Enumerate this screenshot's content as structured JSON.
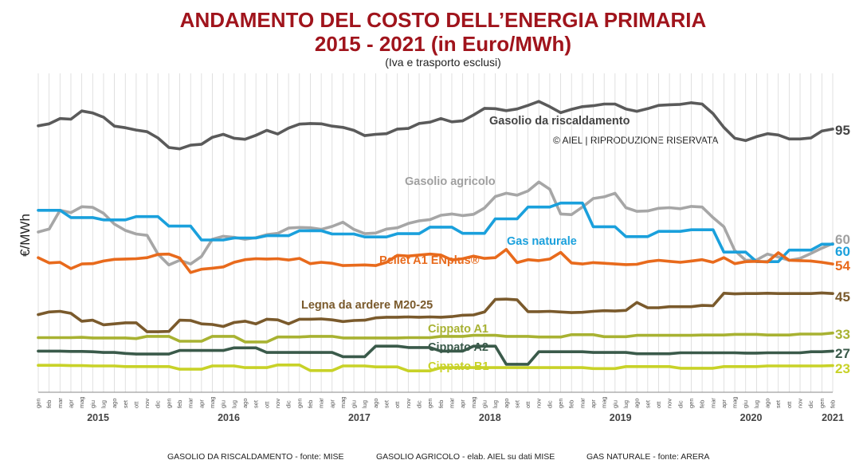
{
  "chart_data": {
    "type": "line",
    "title_line1": "ANDAMENTO DEL COSTO DELL’ENERGIA PRIMARIA",
    "title_line2": "2015 - 2021 (in Euro/MWh)",
    "subtitle": "(Iva e trasporto esclusi)",
    "ylabel": "€/MWh",
    "copyright": "© AIEL | RIPRODUZIONE RISERVATA",
    "grid": true,
    "months": [
      "gen",
      "feb",
      "mar",
      "apr",
      "mag",
      "giu",
      "lug",
      "ago",
      "set",
      "ott",
      "nov",
      "dic"
    ],
    "years": [
      "2015",
      "2016",
      "2017",
      "2018",
      "2019",
      "2020",
      "2021"
    ],
    "x_start": "2015-01",
    "sources": [
      "GASOLIO DA RISCALDAMENTO - fonte: MISE",
      "GASOLIO AGRICOLO - elab. AIEL su dati MISE",
      "GAS NATURALE - fonte: ARERA"
    ],
    "series": [
      {
        "name": "Gasolio da riscaldamento",
        "color": "#5a5a5a",
        "end_label": "95",
        "values": [
          96,
          96.6,
          98.2,
          98.0,
          100.5,
          99.9,
          98.6,
          95.9,
          95.4,
          94.7,
          94.2,
          92.3,
          89.4,
          89.0,
          90.1,
          90.4,
          92.5,
          93.4,
          92.2,
          91.9,
          93.1,
          94.6,
          93.5,
          95.3,
          96.5,
          96.7,
          96.6,
          95.9,
          95.5,
          94.6,
          93.0,
          93.4,
          93.6,
          95.0,
          95.2,
          96.7,
          97.1,
          98.2,
          97.2,
          97.5,
          99.3,
          101.3,
          101.2,
          100.6,
          101.1,
          102.2,
          103.4,
          101.8,
          100.0,
          101.0,
          101.8,
          102.1,
          102.6,
          102.6,
          101.1,
          100.4,
          101.2,
          102.2,
          102.4,
          102.5,
          103.0,
          102.6,
          99.7,
          95.5,
          92.2,
          91.5,
          92.7,
          93.6,
          93.2,
          92.0,
          92.0,
          92.3,
          94.4,
          95.0
        ]
      },
      {
        "name": "Gasolio agricolo",
        "color": "#a6a6a6",
        "end_label": "60",
        "values": [
          63.7,
          64.6,
          70.3,
          69.6,
          71.4,
          71.2,
          69.4,
          66.1,
          64.2,
          63.1,
          62.7,
          57.0,
          53.7,
          55.1,
          54.0,
          56.3,
          61.5,
          62.4,
          62.1,
          61.5,
          62.0,
          62.9,
          63.3,
          64.9,
          65.1,
          65.0,
          64.5,
          65.4,
          66.7,
          64.5,
          63.2,
          63.4,
          64.6,
          65.0,
          66.3,
          67.1,
          67.5,
          68.8,
          69.2,
          68.7,
          69.1,
          71.0,
          74.5,
          75.5,
          74.9,
          76.2,
          78.9,
          76.7,
          69.2,
          69.0,
          71.3,
          73.9,
          74.4,
          75.5,
          71.1,
          70.0,
          70.1,
          70.9,
          71.1,
          70.8,
          71.5,
          71.3,
          68.1,
          65.3,
          58.1,
          55.1,
          55.2,
          57.0,
          56.1,
          55.1,
          55.7,
          57.2,
          58.8,
          60.2
        ]
      },
      {
        "name": "Gas naturale",
        "color": "#1aa0dc",
        "end_label": "60",
        "values": [
          70.3,
          70.3,
          70.3,
          68.1,
          68.1,
          68.1,
          67.4,
          67.4,
          67.4,
          68.4,
          68.4,
          68.4,
          65.5,
          65.5,
          65.5,
          61.3,
          61.3,
          61.3,
          61.9,
          61.9,
          61.9,
          62.6,
          62.6,
          62.6,
          64.1,
          64.1,
          64.1,
          63.1,
          63.1,
          63.1,
          62.2,
          62.2,
          62.2,
          63.2,
          63.2,
          63.2,
          65.2,
          65.2,
          65.2,
          63.3,
          63.3,
          63.3,
          67.7,
          67.7,
          67.7,
          71.3,
          71.3,
          71.3,
          72.5,
          72.5,
          72.5,
          65.3,
          65.3,
          65.3,
          62.3,
          62.3,
          62.3,
          63.9,
          63.9,
          63.9,
          64.4,
          64.4,
          64.4,
          57.6,
          57.6,
          57.6,
          54.7,
          54.7,
          54.7,
          58.2,
          58.2,
          58.2,
          60.0,
          60.0
        ]
      },
      {
        "name": "Pellet A1 ENplus®",
        "color": "#e86a1c",
        "end_label": "54",
        "values": [
          55.9,
          54.3,
          54.5,
          52.6,
          54.0,
          54.1,
          54.9,
          55.4,
          55.5,
          55.6,
          55.9,
          56.9,
          57.0,
          55.8,
          51.4,
          52.4,
          52.7,
          53.1,
          54.5,
          55.3,
          55.6,
          55.5,
          55.6,
          55.2,
          55.7,
          54.1,
          54.5,
          54.2,
          53.5,
          53.6,
          53.7,
          53.5,
          54.5,
          56.6,
          56.4,
          56.7,
          57.0,
          56.7,
          55.2,
          55.6,
          56.4,
          55.7,
          55.9,
          58.4,
          54.4,
          55.3,
          55.0,
          55.5,
          57.5,
          54.3,
          54.0,
          54.4,
          54.2,
          54.0,
          53.8,
          53.9,
          54.7,
          55.1,
          54.8,
          54.5,
          54.9,
          55.3,
          54.5,
          55.9,
          54.1,
          54.7,
          54.8,
          54.6,
          57.4,
          55.1,
          55.0,
          54.9,
          54.5,
          54.0
        ]
      },
      {
        "name": "Legna da ardere M20-25",
        "color": "#7a5a2c",
        "end_label": "45",
        "values": [
          38.6,
          39.4,
          39.6,
          39.0,
          36.6,
          36.9,
          35.5,
          35.8,
          36.1,
          36.1,
          33.4,
          33.4,
          33.5,
          36.9,
          36.8,
          35.8,
          35.6,
          35.0,
          36.2,
          36.6,
          35.8,
          37.2,
          37.0,
          35.8,
          37.2,
          37.2,
          37.3,
          37.0,
          36.5,
          36.8,
          36.9,
          37.6,
          37.8,
          37.8,
          37.9,
          37.8,
          37.9,
          37.8,
          38.0,
          38.4,
          38.5,
          39.4,
          43.2,
          43.3,
          43.1,
          39.5,
          39.5,
          39.6,
          39.4,
          39.2,
          39.3,
          39.6,
          39.8,
          39.7,
          39.9,
          42.3,
          40.7,
          40.7,
          41.0,
          41.0,
          41.0,
          41.4,
          41.3,
          45.1,
          44.9,
          45.0,
          45.0,
          45.1,
          45.0,
          45.0,
          45.0,
          45.0,
          45.2,
          45.0
        ]
      },
      {
        "name": "Cippato A1",
        "color": "#a8b232",
        "end_label": "33",
        "values": [
          31.6,
          31.6,
          31.6,
          31.6,
          31.7,
          31.5,
          31.5,
          31.5,
          31.5,
          31.3,
          32.0,
          32.0,
          32.0,
          30.5,
          30.5,
          30.5,
          32.0,
          32.0,
          32.0,
          30.3,
          30.3,
          30.3,
          31.8,
          31.8,
          31.8,
          32.0,
          32.0,
          32.0,
          31.5,
          31.5,
          31.5,
          31.5,
          31.5,
          31.5,
          31.6,
          31.6,
          31.6,
          32.0,
          32.0,
          32.0,
          32.3,
          32.3,
          32.3,
          32.0,
          32.0,
          32.0,
          31.8,
          31.8,
          31.8,
          32.5,
          32.5,
          32.5,
          31.9,
          31.9,
          31.9,
          32.3,
          32.3,
          32.3,
          32.3,
          32.3,
          32.3,
          32.4,
          32.4,
          32.4,
          32.6,
          32.6,
          32.6,
          32.4,
          32.4,
          32.4,
          32.7,
          32.7,
          32.7,
          33.0
        ]
      },
      {
        "name": "Cippato A2",
        "color": "#3a5a4a",
        "end_label": "27",
        "values": [
          27.5,
          27.5,
          27.5,
          27.4,
          27.4,
          27.3,
          27.1,
          27.1,
          26.8,
          26.6,
          26.6,
          26.6,
          26.6,
          27.7,
          27.7,
          27.7,
          27.7,
          27.7,
          28.5,
          28.5,
          28.5,
          27.1,
          27.1,
          27.1,
          27.1,
          27.1,
          27.1,
          27.1,
          25.8,
          25.8,
          25.8,
          29.0,
          29.0,
          29.0,
          28.6,
          28.6,
          28.6,
          27.5,
          27.5,
          27.5,
          29.0,
          29.0,
          29.0,
          23.5,
          23.5,
          23.5,
          27.3,
          27.3,
          27.3,
          27.3,
          27.3,
          27.1,
          27.1,
          27.1,
          27.1,
          26.7,
          26.7,
          26.7,
          26.7,
          27.0,
          27.0,
          27.0,
          27.0,
          27.0,
          27.0,
          26.9,
          26.9,
          27.0,
          27.0,
          27.0,
          27.0,
          27.3,
          27.3,
          27.5
        ]
      },
      {
        "name": "Cippato B1",
        "color": "#c8d228",
        "end_label": "23",
        "values": [
          23.2,
          23.2,
          23.2,
          23.1,
          23.1,
          23.0,
          23.0,
          23.0,
          22.8,
          22.8,
          22.8,
          22.8,
          22.8,
          22.0,
          22.0,
          22.0,
          23.0,
          23.0,
          23.0,
          22.5,
          22.5,
          22.5,
          23.3,
          23.3,
          23.3,
          21.6,
          21.6,
          21.6,
          23.0,
          23.0,
          23.0,
          22.7,
          22.7,
          22.7,
          21.5,
          21.5,
          21.5,
          22.5,
          22.5,
          22.5,
          22.5,
          22.5,
          22.5,
          22.5,
          22.5,
          22.5,
          22.5,
          22.5,
          22.5,
          22.5,
          22.5,
          22.2,
          22.2,
          22.2,
          22.8,
          22.8,
          22.8,
          22.8,
          22.8,
          22.3,
          22.3,
          22.3,
          22.3,
          22.8,
          22.8,
          22.8,
          22.8,
          23.0,
          23.0,
          23.0,
          23.0,
          23.0,
          23.0,
          23.1
        ]
      }
    ]
  }
}
